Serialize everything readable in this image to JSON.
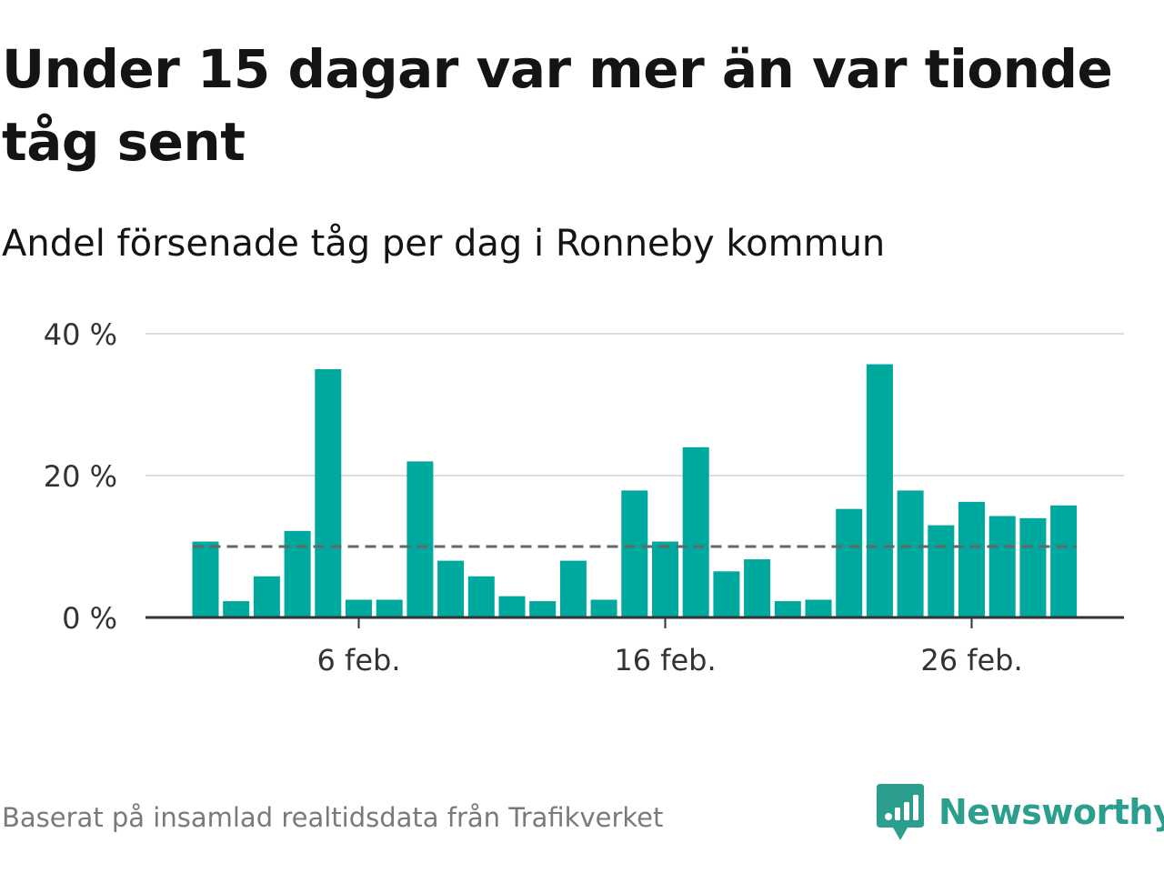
{
  "title": "Under 15 dagar var mer än var tionde tåg sent",
  "subtitle": "Andel försenade tåg per dag i Ronneby kommun",
  "source": "Baserat på insamlad realtidsdata från Trafikverket",
  "brand": {
    "name": "Newsworthy",
    "color": "#2b9e8e"
  },
  "colors": {
    "bar": "#00a99d",
    "reference_line": "#666666",
    "gridline": "#dddddd",
    "baseline": "#333333"
  },
  "chart_data": {
    "type": "bar",
    "x": [
      "1 feb.",
      "2 feb.",
      "3 feb.",
      "4 feb.",
      "5 feb.",
      "6 feb.",
      "7 feb.",
      "8 feb.",
      "9 feb.",
      "10 feb.",
      "11 feb.",
      "12 feb.",
      "13 feb.",
      "14 feb.",
      "15 feb.",
      "16 feb.",
      "17 feb.",
      "18 feb.",
      "19 feb.",
      "20 feb.",
      "21 feb.",
      "22 feb.",
      "23 feb.",
      "24 feb.",
      "25 feb.",
      "26 feb.",
      "27 feb.",
      "28 feb.",
      "29 feb."
    ],
    "values": [
      10.7,
      2.3,
      5.8,
      12.2,
      35.0,
      2.5,
      2.5,
      22.0,
      8.0,
      5.8,
      3.0,
      2.3,
      8.0,
      2.5,
      17.9,
      10.7,
      24.0,
      6.5,
      8.2,
      2.3,
      2.5,
      15.3,
      35.7,
      17.9,
      13.0,
      16.3,
      14.3,
      14.0,
      15.8
    ],
    "x_ticks": [
      {
        "at": "6 feb.",
        "label": "6 feb."
      },
      {
        "at": "16 feb.",
        "label": "16 feb."
      },
      {
        "at": "26 feb.",
        "label": "26 feb."
      }
    ],
    "y_ticks": [
      {
        "value": 0,
        "label": "0 %"
      },
      {
        "value": 20,
        "label": "20 %"
      },
      {
        "value": 40,
        "label": "40 %"
      }
    ],
    "ylim": [
      0,
      40
    ],
    "reference_line": 10,
    "grid": true
  }
}
